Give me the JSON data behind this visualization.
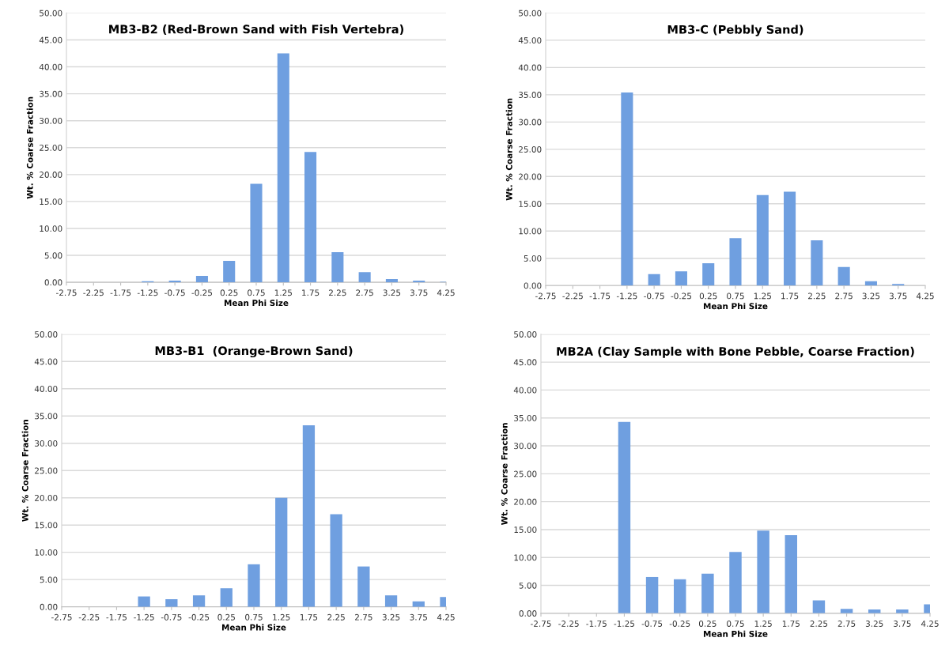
{
  "chart_data": [
    {
      "type": "bar",
      "title": "MB3-B2 (Red-Brown Sand with Fish Vertebra)",
      "xlabel": "Mean Phi Size",
      "ylabel": "Wt. % Coarse Fraction",
      "color": "#6f9fe0",
      "grid": "y",
      "x": [
        -2.75,
        -2.25,
        -1.75,
        -1.25,
        -0.75,
        -0.25,
        0.25,
        0.75,
        1.25,
        1.75,
        2.25,
        2.75,
        3.25,
        3.75,
        4.25
      ],
      "values": [
        0,
        0,
        0,
        0.2,
        0.3,
        1.2,
        4.0,
        18.3,
        42.5,
        24.2,
        5.6,
        1.9,
        0.6,
        0.3,
        0.1
      ],
      "xlim": [
        -2.75,
        4.25
      ],
      "xticks": [
        -2.75,
        -2.25,
        -1.75,
        -1.25,
        -0.75,
        -0.25,
        0.25,
        0.75,
        1.25,
        1.75,
        2.25,
        2.75,
        3.25,
        3.75,
        4.25
      ],
      "ylim": [
        0,
        50
      ],
      "yticks": [
        {
          "value": 0,
          "label": "0.00"
        },
        {
          "value": 5,
          "label": "5.00"
        },
        {
          "value": 10,
          "label": "10.00"
        },
        {
          "value": 15,
          "label": "15.00"
        },
        {
          "value": 20,
          "label": "20.00"
        },
        {
          "value": 25,
          "label": "25.00"
        },
        {
          "value": 30,
          "label": "30.00"
        },
        {
          "value": 35,
          "label": "35.00"
        },
        {
          "value": 40,
          "label": "40.00"
        },
        {
          "value": 45,
          "label": "45.00"
        },
        {
          "value": 50,
          "label": "50.00"
        }
      ]
    },
    {
      "type": "bar",
      "title": "MB3-C (Pebbly Sand)",
      "xlabel": "Mean Phi Size",
      "ylabel": "Wt. % Coarse Fraction",
      "color": "#6f9fe0",
      "grid": "y",
      "x": [
        -2.75,
        -2.25,
        -1.75,
        -1.25,
        -0.75,
        -0.25,
        0.25,
        0.75,
        1.25,
        1.75,
        2.25,
        2.75,
        3.25,
        3.75,
        4.25
      ],
      "values": [
        0,
        0,
        0,
        35.4,
        2.1,
        2.6,
        4.1,
        8.7,
        16.6,
        17.2,
        8.3,
        3.4,
        0.8,
        0.3,
        0
      ],
      "xlim": [
        -2.75,
        4.25
      ],
      "xticks": [
        -2.75,
        -2.25,
        -1.75,
        -1.25,
        -0.75,
        -0.25,
        0.25,
        0.75,
        1.25,
        1.75,
        2.25,
        2.75,
        3.25,
        3.75,
        4.25
      ],
      "ylim": [
        0,
        50
      ],
      "yticks": [
        {
          "value": 0,
          "label": "0.00"
        },
        {
          "value": 5,
          "label": "5.00"
        },
        {
          "value": 10,
          "label": "10.00"
        },
        {
          "value": 15,
          "label": "15.00"
        },
        {
          "value": 20,
          "label": "20.00"
        },
        {
          "value": 25,
          "label": "25.00"
        },
        {
          "value": 30,
          "label": "30.00"
        },
        {
          "value": 35,
          "label": "35.00"
        },
        {
          "value": 40,
          "label": "40.00"
        },
        {
          "value": 45,
          "label": "45.00"
        },
        {
          "value": 50,
          "label": "50.00"
        }
      ]
    },
    {
      "type": "bar",
      "title": "MB3-B1  (Orange-Brown Sand)",
      "xlabel": "Mean Phi Size",
      "ylabel": "Wt. % Coarse Fraction",
      "color": "#6f9fe0",
      "grid": "y",
      "x": [
        -2.75,
        -2.25,
        -1.75,
        -1.25,
        -0.75,
        -0.25,
        0.25,
        0.75,
        1.25,
        1.75,
        2.25,
        2.75,
        3.25,
        3.75,
        4.25
      ],
      "values": [
        0,
        0,
        0,
        1.9,
        1.4,
        2.1,
        3.4,
        7.8,
        20.0,
        33.3,
        17.0,
        7.4,
        2.1,
        1.0,
        1.8
      ],
      "xlim": [
        -2.75,
        4.25
      ],
      "xticks": [
        -2.75,
        -2.25,
        -1.75,
        -1.25,
        -0.75,
        -0.25,
        0.25,
        0.75,
        1.25,
        1.75,
        2.25,
        2.75,
        3.25,
        3.75,
        4.25
      ],
      "ylim": [
        0,
        50
      ],
      "yticks": [
        {
          "value": 0,
          "label": "0.00"
        },
        {
          "value": 5,
          "label": "5.00"
        },
        {
          "value": 10,
          "label": "10.00"
        },
        {
          "value": 15,
          "label": "15.00"
        },
        {
          "value": 20,
          "label": "20.00"
        },
        {
          "value": 25,
          "label": "25.00"
        },
        {
          "value": 30,
          "label": "30.00"
        },
        {
          "value": 35,
          "label": "35.00"
        },
        {
          "value": 40,
          "label": "40.00"
        },
        {
          "value": 45,
          "label": "45.00"
        },
        {
          "value": 50,
          "label": "50.00"
        }
      ]
    },
    {
      "type": "bar",
      "title": "MB2A (Clay Sample with Bone Pebble, Coarse Fraction)",
      "xlabel": "Mean Phi Size",
      "ylabel": "Wt. % Coarse Fraction",
      "color": "#6f9fe0",
      "grid": "y",
      "x": [
        -2.75,
        -2.25,
        -1.75,
        -1.25,
        -0.75,
        -0.25,
        0.25,
        0.75,
        1.25,
        1.75,
        2.25,
        2.75,
        3.25,
        3.75,
        4.25
      ],
      "values": [
        0,
        0,
        0,
        34.3,
        6.5,
        6.1,
        7.1,
        11.0,
        14.8,
        14.0,
        2.3,
        0.8,
        0.7,
        0.7,
        1.6
      ],
      "xlim": [
        -2.75,
        4.25
      ],
      "xticks": [
        -2.75,
        -2.25,
        -1.75,
        -1.25,
        -0.75,
        -0.25,
        0.25,
        0.75,
        1.25,
        1.75,
        2.25,
        2.75,
        3.25,
        3.75,
        4.25
      ],
      "ylim": [
        0,
        50
      ],
      "yticks": [
        {
          "value": 0,
          "label": "0.00"
        },
        {
          "value": 5,
          "label": "5.00"
        },
        {
          "value": 10,
          "label": "10.00"
        },
        {
          "value": 15,
          "label": "15.00"
        },
        {
          "value": 20,
          "label": "20.00"
        },
        {
          "value": 25,
          "label": "25.00"
        },
        {
          "value": 30,
          "label": "30.00"
        },
        {
          "value": 35,
          "label": "35.00"
        },
        {
          "value": 40,
          "label": "40.00"
        },
        {
          "value": 45,
          "label": "45.00"
        },
        {
          "value": 50,
          "label": "50.00"
        }
      ]
    }
  ]
}
